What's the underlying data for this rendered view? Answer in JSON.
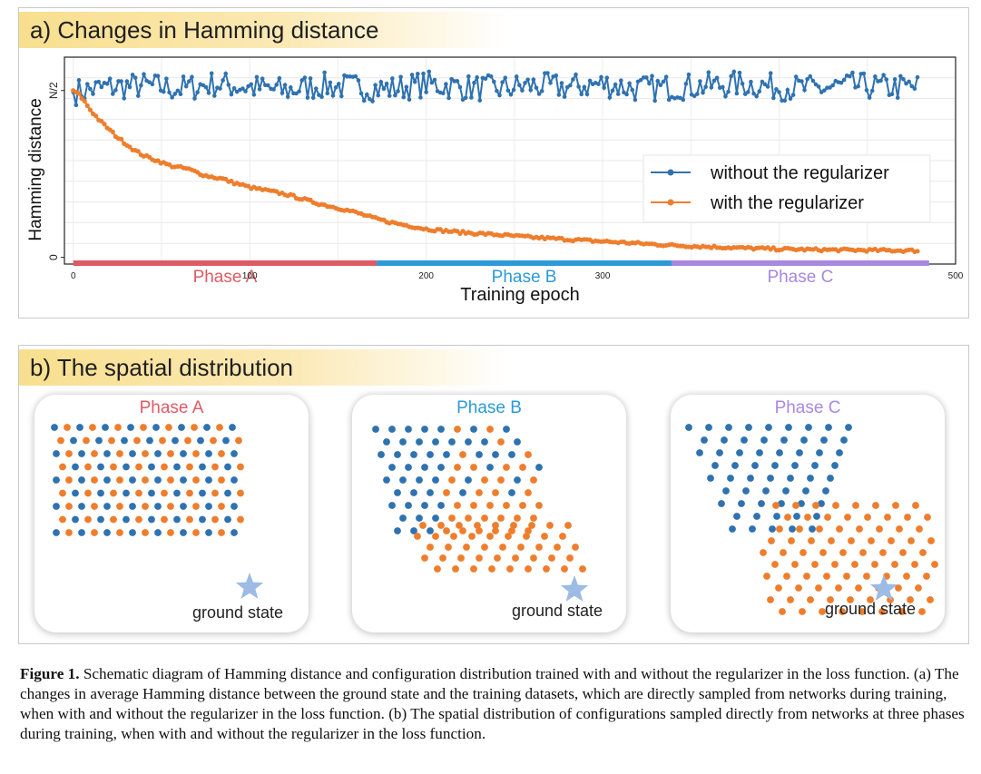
{
  "panel_a": {
    "title": "a) Changes in Hamming distance"
  },
  "panel_b": {
    "title": "b) The spatial distribution",
    "subpanels": [
      {
        "title": "Phase A",
        "title_color": "#de5a64",
        "star_label": "ground state"
      },
      {
        "title": "Phase B",
        "title_color": "#2c9ad8",
        "star_label": "ground state"
      },
      {
        "title": "Phase C",
        "title_color": "#a988e0",
        "star_label": "ground state"
      }
    ],
    "colors": {
      "without": "#2f72b0",
      "with": "#ee7e2d",
      "star": "#9dbbe4"
    }
  },
  "caption": {
    "label": "Figure 1.",
    "text": " Schematic diagram of Hamming distance and configuration distribution trained with and without the regularizer in the loss function. (a) The changes in average Hamming distance between the ground state and the training datasets, which are directly sampled from networks during training, when with and without the regularizer in the loss function. (b) The spatial distribution of configurations sampled directly from networks at three phases during training, when with and without the regularizer in the loss function."
  },
  "chart_data": {
    "type": "line",
    "xlabel": "Training epoch",
    "ylabel": "Hamming distance",
    "xlim": [
      -5,
      500
    ],
    "xticks": [
      0,
      100,
      200,
      300,
      500
    ],
    "yticks": [
      {
        "value": 0,
        "label": "0"
      },
      {
        "value": 0.5,
        "label": "N/2"
      }
    ],
    "ylim": [
      -0.02,
      0.6
    ],
    "grid": true,
    "legend_position": "right",
    "phases": [
      {
        "name": "Phase A",
        "start": 0,
        "end": 172,
        "color": "#de5a64"
      },
      {
        "name": "Phase B",
        "start": 172,
        "end": 339,
        "color": "#2c9ad8"
      },
      {
        "name": "Phase C",
        "start": 339,
        "end": 485,
        "color": "#a988e0"
      }
    ],
    "series": [
      {
        "name": "without the regularizer",
        "color": "#2f72b0",
        "x": [
          0,
          20,
          40,
          60,
          80,
          100,
          120,
          140,
          160,
          180,
          200,
          220,
          240,
          260,
          280,
          300,
          320,
          340,
          360,
          380,
          400,
          420,
          440,
          460,
          480
        ],
        "y": [
          0.495,
          0.51,
          0.515,
          0.505,
          0.52,
          0.51,
          0.5,
          0.515,
          0.51,
          0.505,
          0.52,
          0.51,
          0.505,
          0.515,
          0.51,
          0.52,
          0.505,
          0.51,
          0.515,
          0.52,
          0.51,
          0.505,
          0.515,
          0.51,
          0.51
        ],
        "fluctuation": 0.04
      },
      {
        "name": "with the regularizer",
        "color": "#ee7e2d",
        "x": [
          0,
          3,
          6,
          10,
          15,
          20,
          25,
          30,
          35,
          40,
          45,
          50,
          55,
          60,
          65,
          70,
          75,
          80,
          85,
          90,
          95,
          100,
          110,
          120,
          130,
          140,
          150,
          160,
          170,
          180,
          190,
          200,
          220,
          240,
          260,
          280,
          300,
          320,
          340,
          360,
          380,
          400,
          420,
          440,
          460,
          480
        ],
        "y": [
          0.5,
          0.49,
          0.47,
          0.44,
          0.41,
          0.385,
          0.36,
          0.34,
          0.32,
          0.305,
          0.295,
          0.285,
          0.275,
          0.27,
          0.265,
          0.255,
          0.245,
          0.24,
          0.235,
          0.225,
          0.218,
          0.21,
          0.2,
          0.19,
          0.175,
          0.16,
          0.148,
          0.135,
          0.118,
          0.105,
          0.095,
          0.085,
          0.075,
          0.068,
          0.06,
          0.054,
          0.048,
          0.042,
          0.036,
          0.032,
          0.028,
          0.025,
          0.023,
          0.022,
          0.021,
          0.02
        ],
        "fluctuation": 0.004
      }
    ]
  }
}
